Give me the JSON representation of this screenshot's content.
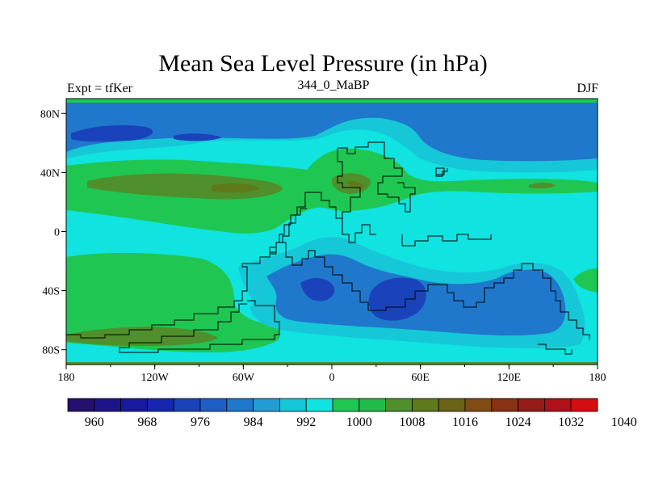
{
  "header": {
    "title": "Mean Sea Level Pressure (in hPa)",
    "left_label": "Expt = tfKer",
    "center_label": "344_0_MaBP",
    "right_label": "DJF"
  },
  "axes": {
    "lon_ticks": [
      {
        "value": -180,
        "label": "180"
      },
      {
        "value": -120,
        "label": "120W"
      },
      {
        "value": -60,
        "label": "60W"
      },
      {
        "value": 0,
        "label": "0"
      },
      {
        "value": 60,
        "label": "60E"
      },
      {
        "value": 120,
        "label": "120E"
      },
      {
        "value": 180,
        "label": "180"
      }
    ],
    "lat_ticks": [
      {
        "value": 80,
        "label": "80N"
      },
      {
        "value": 40,
        "label": "40N"
      },
      {
        "value": 0,
        "label": "0"
      },
      {
        "value": -40,
        "label": "40S"
      },
      {
        "value": -80,
        "label": "80S"
      }
    ],
    "lon_range": [
      -180,
      180
    ],
    "lat_range": [
      -90,
      90
    ]
  },
  "colorbar": {
    "colors": [
      "#24106e",
      "#1d148a",
      "#18199e",
      "#1626b0",
      "#1a43bb",
      "#1d5fc6",
      "#1f78cc",
      "#229cd4",
      "#16c7d8",
      "#10e3e0",
      "#1fc752",
      "#20bb48",
      "#4f8f2c",
      "#5e7a1a",
      "#6b6416",
      "#7f4c14",
      "#8a3216",
      "#951c18",
      "#b0101a",
      "#d40d12"
    ],
    "labels": [
      {
        "value": 960,
        "label": "960"
      },
      {
        "value": 968,
        "label": "968"
      },
      {
        "value": 976,
        "label": "976"
      },
      {
        "value": 984,
        "label": "984"
      },
      {
        "value": 992,
        "label": "992"
      },
      {
        "value": 1000,
        "label": "1000"
      },
      {
        "value": 1008,
        "label": "1008"
      },
      {
        "value": 1016,
        "label": "1016"
      },
      {
        "value": 1024,
        "label": "1024"
      },
      {
        "value": 1032,
        "label": "1032"
      },
      {
        "value": 1040,
        "label": "1040"
      }
    ]
  },
  "fill_colors": {
    "high_1016": "#4f8f2c",
    "mid_1008": "#1fc752",
    "base_1000": "#10e3e0",
    "low_992": "#16c7d8",
    "low_984": "#1f78cc",
    "low_976": "#1a43bb",
    "coast": "#000000"
  }
}
